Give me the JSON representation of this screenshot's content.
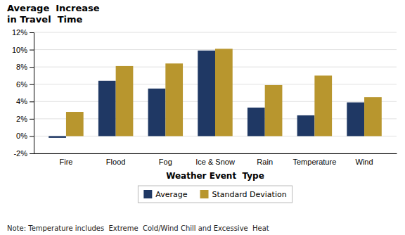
{
  "chart_data": {
    "type": "bar",
    "title": "Average  Increase\nin Travel  Time",
    "xlabel": "Weather Event  Type",
    "categories": [
      "Fire",
      "Flood",
      "Fog",
      "Ice & Snow",
      "Rain",
      "Temperature",
      "Wind"
    ],
    "series": [
      {
        "name": "Average",
        "color": "#1F3864",
        "values": [
          -0.002,
          0.064,
          0.055,
          0.099,
          0.033,
          0.024,
          0.039
        ]
      },
      {
        "name": "Standard Deviation",
        "color": "#B8962E",
        "values": [
          0.028,
          0.081,
          0.084,
          0.101,
          0.059,
          0.07,
          0.045
        ]
      }
    ],
    "ylim": [
      -0.02,
      0.12
    ],
    "yticks": [
      {
        "value": -0.02,
        "label": "-2%"
      },
      {
        "value": 0.0,
        "label": "0%"
      },
      {
        "value": 0.02,
        "label": "2%"
      },
      {
        "value": 0.04,
        "label": "4%"
      },
      {
        "value": 0.06,
        "label": "6%"
      },
      {
        "value": 0.08,
        "label": "8%"
      },
      {
        "value": 0.1,
        "label": "10%"
      },
      {
        "value": 0.12,
        "label": "12%"
      }
    ],
    "grid": true,
    "legend": "bottom",
    "annotations": [
      "Note: Temperature includes  Extreme  Cold/Wind Chill and Excessive  Heat"
    ]
  }
}
